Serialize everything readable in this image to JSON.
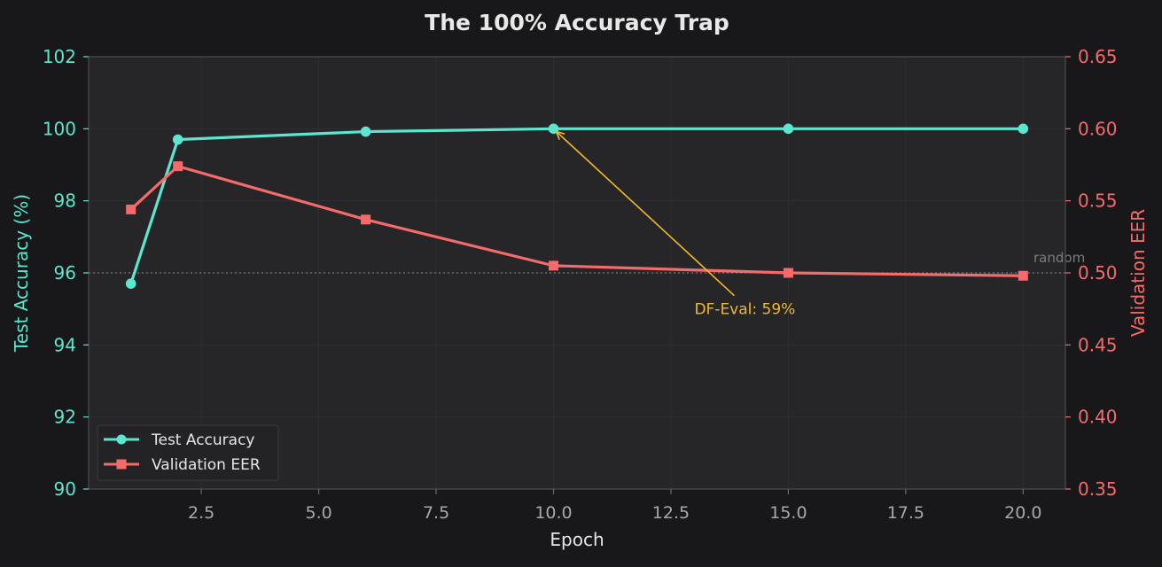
{
  "chart_data": {
    "type": "line",
    "title": "The 100% Accuracy Trap",
    "xlabel": "Epoch",
    "ylabel_left": "Test Accuracy (%)",
    "ylabel_right": "Validation EER",
    "xlim": [
      0.1,
      20.9
    ],
    "ylim_left": [
      90,
      102
    ],
    "ylim_right": [
      0.35,
      0.65
    ],
    "xticks": [
      2.5,
      5.0,
      7.5,
      10.0,
      12.5,
      15.0,
      17.5,
      20.0
    ],
    "xtick_labels": [
      "2.5",
      "5.0",
      "7.5",
      "10.0",
      "12.5",
      "15.0",
      "17.5",
      "20.0"
    ],
    "yticks_left": [
      90,
      92,
      94,
      96,
      98,
      100,
      102
    ],
    "ytick_labels_left": [
      "90",
      "92",
      "94",
      "96",
      "98",
      "100",
      "102"
    ],
    "yticks_right": [
      0.35,
      0.4,
      0.45,
      0.5,
      0.55,
      0.6,
      0.65
    ],
    "ytick_labels_right": [
      "0.35",
      "0.40",
      "0.45",
      "0.50",
      "0.55",
      "0.60",
      "0.65"
    ],
    "grid": true,
    "legend_position": "bottom-left",
    "series": [
      {
        "name": "Test Accuracy",
        "axis": "left",
        "marker": "circle",
        "color": "#5ce6cf",
        "x": [
          1,
          2,
          6,
          10,
          15,
          20
        ],
        "y": [
          95.7,
          99.7,
          99.92,
          100.0,
          100.0,
          100.0
        ]
      },
      {
        "name": "Validation EER",
        "axis": "right",
        "marker": "square",
        "color": "#f56b6b",
        "x": [
          1,
          2,
          6,
          10,
          15,
          20
        ],
        "y": [
          0.544,
          0.574,
          0.537,
          0.505,
          0.5,
          0.498
        ]
      }
    ],
    "reference_line": {
      "axis": "right",
      "y": 0.5,
      "label": "random"
    },
    "annotation": {
      "text": "DF-Eval: 59%",
      "text_x": 13.0,
      "text_y_left": 95.0,
      "arrow_x": 10.0,
      "arrow_y_left": 100.0,
      "color": "#f0b92a"
    }
  }
}
